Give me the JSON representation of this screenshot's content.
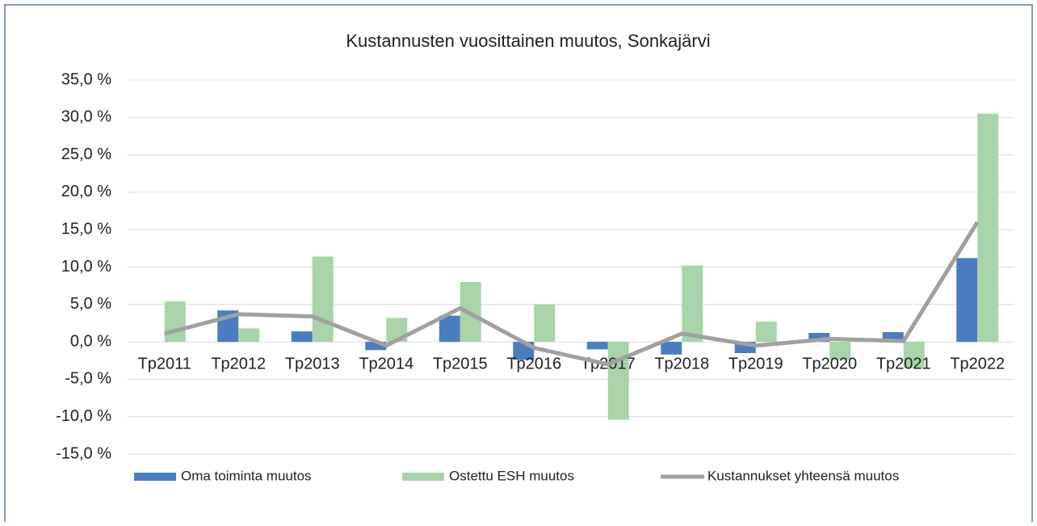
{
  "chart_data": {
    "type": "bar_line",
    "title": "Kustannusten vuosittainen muutos, Sonkajärvi",
    "categories": [
      "Tp2011",
      "Tp2012",
      "Tp2013",
      "Tp2014",
      "Tp2015",
      "Tp2016",
      "Tp2017",
      "Tp2018",
      "Tp2019",
      "Tp2020",
      "Tp2021",
      "Tp2022"
    ],
    "series": [
      {
        "name": "Oma toiminta muutos",
        "type": "bar",
        "color": "#4a7cc0",
        "values": [
          0,
          4.2,
          1.4,
          -1.1,
          3.5,
          -2.4,
          -1.0,
          -1.7,
          -1.5,
          1.2,
          1.3,
          11.2
        ]
      },
      {
        "name": "Ostettu ESH muutos",
        "type": "bar",
        "color": "#a9d3a8",
        "values": [
          5.4,
          1.8,
          11.4,
          3.2,
          8.0,
          5.0,
          -10.4,
          10.2,
          2.7,
          -2.4,
          -3.5,
          30.5
        ]
      },
      {
        "name": "Kustannukset yhteensä muutos",
        "type": "line",
        "color": "#a0a0a0",
        "values": [
          1.1,
          3.7,
          3.4,
          -0.5,
          4.5,
          -0.8,
          -3.0,
          1.1,
          -0.5,
          0.4,
          0.1,
          16.0
        ]
      }
    ],
    "ylim": [
      -15,
      35
    ],
    "yticks": [
      {
        "value": -15,
        "label": "-15,0 %"
      },
      {
        "value": -10,
        "label": "-10,0 %"
      },
      {
        "value": -5,
        "label": "-5,0 %"
      },
      {
        "value": 0,
        "label": "0,0 %"
      },
      {
        "value": 5,
        "label": "5,0 %"
      },
      {
        "value": 10,
        "label": "10,0 %"
      },
      {
        "value": 15,
        "label": "15,0 %"
      },
      {
        "value": 20,
        "label": "20,0 %"
      },
      {
        "value": 25,
        "label": "25,0 %"
      },
      {
        "value": 30,
        "label": "30,0 %"
      },
      {
        "value": 35,
        "label": "35,0 %"
      }
    ],
    "grid": true,
    "legend": "bottom"
  }
}
